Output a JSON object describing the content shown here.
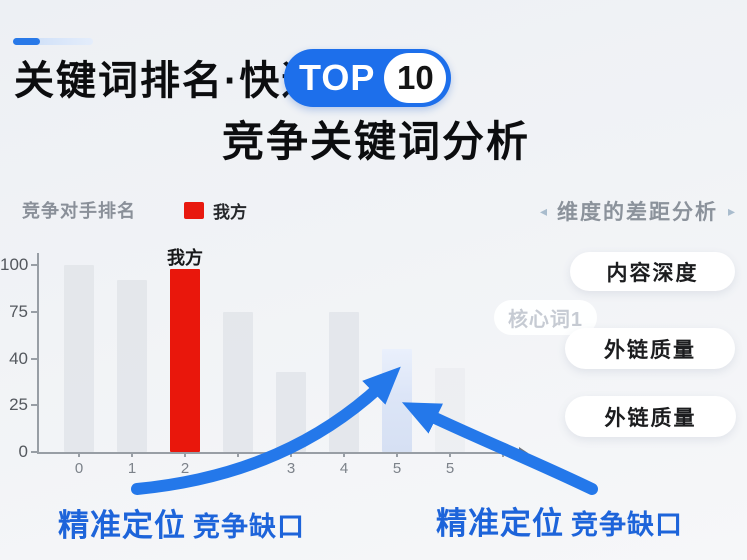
{
  "header": {
    "title": "关键词排名·快速",
    "badge_top": "TOP",
    "badge_number": "10",
    "subtitle": "竞争关键词分析"
  },
  "chart": {
    "label": "竞争对手排名",
    "legend_label": "我方"
  },
  "chart_data": {
    "type": "bar",
    "title": "竞争对手排名",
    "xlabel": "",
    "ylabel": "",
    "ylim": [
      0,
      107
    ],
    "y_ticks": [
      100,
      75,
      40,
      25,
      0
    ],
    "grid": false,
    "legend_position": "top",
    "categories": [
      "0",
      "1",
      "2",
      "",
      "3",
      "4",
      "5",
      "5",
      ""
    ],
    "bars": [
      {
        "label": "0",
        "value": 100,
        "style": "gray"
      },
      {
        "label": "1",
        "value": 92,
        "style": "gray"
      },
      {
        "label": "2",
        "value": 98,
        "style": "red",
        "annotation": "我方"
      },
      {
        "label": "",
        "value": 75,
        "style": "gray"
      },
      {
        "label": "3",
        "value": 43,
        "style": "gray"
      },
      {
        "label": "4",
        "value": 75,
        "style": "gray"
      },
      {
        "label": "5",
        "value": 55,
        "style": "blue"
      },
      {
        "label": "5",
        "value": 45,
        "style": "faint"
      }
    ],
    "legend": [
      {
        "label": "我方",
        "color": "#e8190f"
      }
    ]
  },
  "panel": {
    "left_arrow": "◂",
    "heading": "维度的差距分析",
    "right_arrow": "▸",
    "pills": [
      "内容深度",
      "外链质量",
      "外链质量"
    ],
    "tag": "核心词1"
  },
  "captions": {
    "left": {
      "bold": "精准定位",
      "rest": "竞争缺口"
    },
    "right": {
      "bold": "精准定位",
      "rest": "竞争缺口"
    }
  },
  "colors": {
    "accent_blue": "#1d6feb",
    "arrow_blue": "#2478ea",
    "highlight_red": "#e8190f",
    "caption_blue": "#1d64da"
  }
}
